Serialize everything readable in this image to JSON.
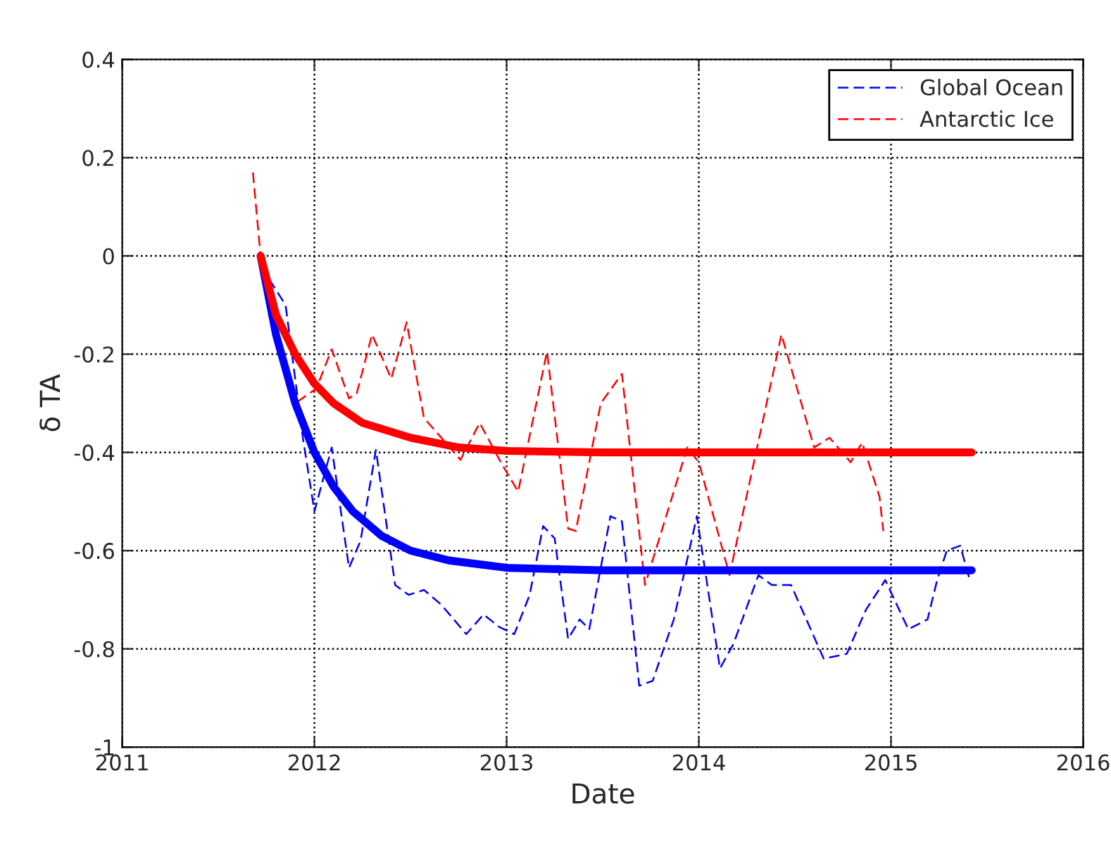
{
  "chart_data": {
    "type": "line",
    "xlabel": "Date",
    "ylabel": "δ TA",
    "xlim": [
      2011,
      2016
    ],
    "xticks": [
      2011,
      2012,
      2013,
      2014,
      2015,
      2016
    ],
    "ylim": [
      -1,
      0.4
    ],
    "yticks": [
      -1,
      -0.8,
      -0.6,
      -0.4,
      -0.2,
      0,
      0.2,
      0.4
    ],
    "grid": true,
    "legend": "top right",
    "series": [
      {
        "name": "Global Ocean",
        "color": "#0000ff",
        "line_style": "dashed",
        "x": [
          2011.72,
          2011.85,
          2011.94,
          2012.0,
          2012.09,
          2012.18,
          2012.24,
          2012.32,
          2012.42,
          2012.49,
          2012.57,
          2012.66,
          2012.79,
          2012.88,
          2012.96,
          2013.04,
          2013.12,
          2013.19,
          2013.25,
          2013.32,
          2013.38,
          2013.43,
          2013.54,
          2013.6,
          2013.69,
          2013.76,
          2013.87,
          2013.99,
          2014.11,
          2014.18,
          2014.31,
          2014.38,
          2014.48,
          2014.65,
          2014.77,
          2014.87,
          2014.97,
          2015.09,
          2015.19,
          2015.24,
          2015.29,
          2015.36,
          2015.41
        ],
        "values": [
          -0.02,
          -0.1,
          -0.37,
          -0.52,
          -0.39,
          -0.635,
          -0.58,
          -0.395,
          -0.67,
          -0.69,
          -0.68,
          -0.71,
          -0.77,
          -0.73,
          -0.755,
          -0.77,
          -0.69,
          -0.55,
          -0.575,
          -0.78,
          -0.74,
          -0.76,
          -0.53,
          -0.54,
          -0.875,
          -0.865,
          -0.74,
          -0.53,
          -0.84,
          -0.79,
          -0.65,
          -0.67,
          -0.67,
          -0.82,
          -0.81,
          -0.72,
          -0.66,
          -0.76,
          -0.74,
          -0.66,
          -0.6,
          -0.59,
          -0.66
        ]
      },
      {
        "name": "Antarctic Ice",
        "color": "#ff0000",
        "line_style": "dashed",
        "x": [
          2011.68,
          2011.72,
          2011.79,
          2011.9,
          2012.01,
          2012.09,
          2012.18,
          2012.22,
          2012.3,
          2012.4,
          2012.48,
          2012.57,
          2012.66,
          2012.76,
          2012.86,
          2012.97,
          2013.06,
          2013.21,
          2013.32,
          2013.36,
          2013.49,
          2013.6,
          2013.72,
          2013.94,
          2014.0,
          2014.16,
          2014.43,
          2014.6,
          2014.68,
          2014.79,
          2014.85,
          2014.94,
          2014.96
        ],
        "values": [
          0.17,
          0.0,
          -0.12,
          -0.3,
          -0.27,
          -0.19,
          -0.29,
          -0.28,
          -0.16,
          -0.25,
          -0.135,
          -0.33,
          -0.37,
          -0.415,
          -0.34,
          -0.42,
          -0.48,
          -0.195,
          -0.555,
          -0.56,
          -0.3,
          -0.24,
          -0.67,
          -0.39,
          -0.42,
          -0.65,
          -0.16,
          -0.39,
          -0.37,
          -0.42,
          -0.38,
          -0.49,
          -0.56
        ]
      },
      {
        "color": "#0000ff",
        "line_style": "solid",
        "x": [
          2011.72,
          2011.8,
          2011.9,
          2012.0,
          2012.1,
          2012.2,
          2012.35,
          2012.5,
          2012.7,
          2013.0,
          2013.5,
          2015.42
        ],
        "values": [
          0,
          -0.16,
          -0.3,
          -0.4,
          -0.47,
          -0.52,
          -0.57,
          -0.6,
          -0.62,
          -0.635,
          -0.64,
          -0.64
        ]
      },
      {
        "color": "#ff0000",
        "line_style": "solid",
        "x": [
          2011.72,
          2011.8,
          2011.9,
          2012.0,
          2012.1,
          2012.25,
          2012.5,
          2012.75,
          2013.0,
          2013.5,
          2015.42
        ],
        "values": [
          0,
          -0.12,
          -0.2,
          -0.26,
          -0.3,
          -0.34,
          -0.37,
          -0.39,
          -0.397,
          -0.4,
          -0.4
        ]
      }
    ]
  }
}
